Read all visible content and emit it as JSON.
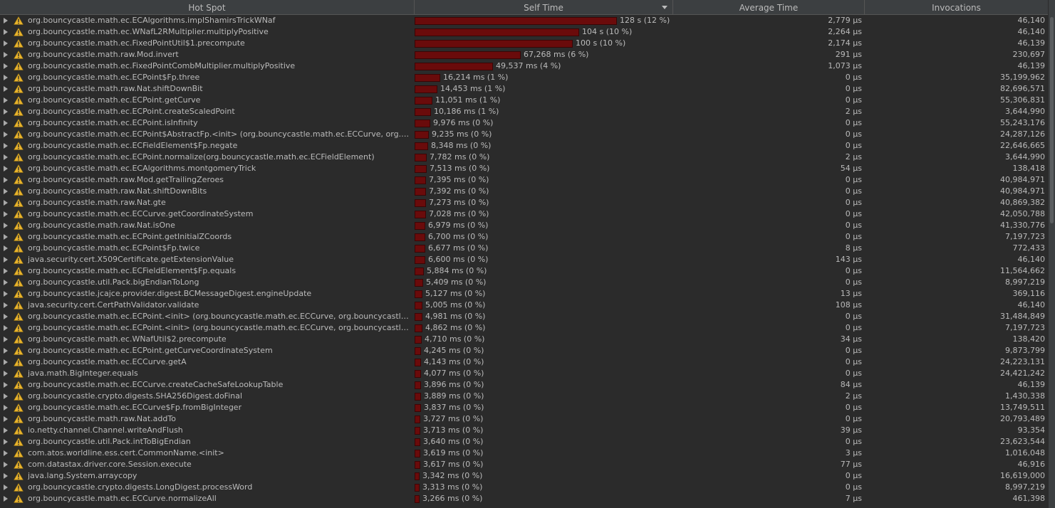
{
  "header": {
    "hot_spot": "Hot Spot",
    "self_time": "Self Time",
    "average_time": "Average Time",
    "invocations": "Invocations"
  },
  "colors": {
    "bar": "#6a0b0b",
    "warning": "#e8b32c"
  },
  "rows": [
    {
      "method": "org.bouncycastle.math.ec.ECAlgorithms.implShamirsTrickWNaf",
      "self": "128 s (12 %)",
      "share": 1.0,
      "avg": "2,779 µs",
      "inv": "46,140"
    },
    {
      "method": "org.bouncycastle.math.ec.WNafL2RMultiplier.multiplyPositive",
      "self": "104 s (10 %)",
      "share": 0.8125,
      "avg": "2,264 µs",
      "inv": "46,140"
    },
    {
      "method": "org.bouncycastle.math.ec.FixedPointUtil$1.precompute",
      "self": "100 s (10 %)",
      "share": 0.78125,
      "avg": "2,174 µs",
      "inv": "46,139"
    },
    {
      "method": "org.bouncycastle.math.raw.Mod.invert",
      "self": "67,268 ms (6 %)",
      "share": 0.5255,
      "avg": "291 µs",
      "inv": "230,697"
    },
    {
      "method": "org.bouncycastle.math.ec.FixedPointCombMultiplier.multiplyPositive",
      "self": "49,537 ms (4 %)",
      "share": 0.387,
      "avg": "1,073 µs",
      "inv": "46,139"
    },
    {
      "method": "org.bouncycastle.math.ec.ECPoint$Fp.three",
      "self": "16,214 ms (1 %)",
      "share": 0.1267,
      "avg": "0 µs",
      "inv": "35,199,962"
    },
    {
      "method": "org.bouncycastle.math.raw.Nat.shiftDownBit",
      "self": "14,453 ms (1 %)",
      "share": 0.1129,
      "avg": "0 µs",
      "inv": "82,696,571"
    },
    {
      "method": "org.bouncycastle.math.ec.ECPoint.getCurve",
      "self": "11,051 ms (1 %)",
      "share": 0.0863,
      "avg": "0 µs",
      "inv": "55,306,831"
    },
    {
      "method": "org.bouncycastle.math.ec.ECPoint.createScaledPoint",
      "self": "10,186 ms (1 %)",
      "share": 0.0796,
      "avg": "2 µs",
      "inv": "3,644,990"
    },
    {
      "method": "org.bouncycastle.math.ec.ECPoint.isInfinity",
      "self": "9,976 ms (0 %)",
      "share": 0.0779,
      "avg": "0 µs",
      "inv": "55,243,176"
    },
    {
      "method": "org.bouncycastle.math.ec.ECPoint$AbstractFp.<init> (org.bouncycastle.math.ec.ECCurve, org.bouncycastle.math.ec.ECFieldElement)",
      "self": "9,235 ms (0 %)",
      "share": 0.0721,
      "avg": "0 µs",
      "inv": "24,287,126"
    },
    {
      "method": "org.bouncycastle.math.ec.ECFieldElement$Fp.negate",
      "self": "8,348 ms (0 %)",
      "share": 0.0652,
      "avg": "0 µs",
      "inv": "22,646,665"
    },
    {
      "method": "org.bouncycastle.math.ec.ECPoint.normalize(org.bouncycastle.math.ec.ECFieldElement)",
      "self": "7,782 ms (0 %)",
      "share": 0.0608,
      "avg": "2 µs",
      "inv": "3,644,990"
    },
    {
      "method": "org.bouncycastle.math.ec.ECAlgorithms.montgomeryTrick",
      "self": "7,513 ms (0 %)",
      "share": 0.0587,
      "avg": "54 µs",
      "inv": "138,418"
    },
    {
      "method": "org.bouncycastle.math.raw.Mod.getTrailingZeroes",
      "self": "7,395 ms (0 %)",
      "share": 0.0578,
      "avg": "0 µs",
      "inv": "40,984,971"
    },
    {
      "method": "org.bouncycastle.math.raw.Nat.shiftDownBits",
      "self": "7,392 ms (0 %)",
      "share": 0.0578,
      "avg": "0 µs",
      "inv": "40,984,971"
    },
    {
      "method": "org.bouncycastle.math.raw.Nat.gte",
      "self": "7,273 ms (0 %)",
      "share": 0.0568,
      "avg": "0 µs",
      "inv": "40,869,382"
    },
    {
      "method": "org.bouncycastle.math.ec.ECCurve.getCoordinateSystem",
      "self": "7,028 ms (0 %)",
      "share": 0.0549,
      "avg": "0 µs",
      "inv": "42,050,788"
    },
    {
      "method": "org.bouncycastle.math.raw.Nat.isOne",
      "self": "6,979 ms (0 %)",
      "share": 0.0545,
      "avg": "0 µs",
      "inv": "41,330,776"
    },
    {
      "method": "org.bouncycastle.math.ec.ECPoint.getInitialZCoords",
      "self": "6,700 ms (0 %)",
      "share": 0.0523,
      "avg": "0 µs",
      "inv": "7,197,723"
    },
    {
      "method": "org.bouncycastle.math.ec.ECPoint$Fp.twice",
      "self": "6,677 ms (0 %)",
      "share": 0.0522,
      "avg": "8 µs",
      "inv": "772,433"
    },
    {
      "method": "java.security.cert.X509Certificate.getExtensionValue",
      "self": "6,600 ms (0 %)",
      "share": 0.0516,
      "avg": "143 µs",
      "inv": "46,140"
    },
    {
      "method": "org.bouncycastle.math.ec.ECFieldElement$Fp.equals",
      "self": "5,884 ms (0 %)",
      "share": 0.046,
      "avg": "0 µs",
      "inv": "11,564,662"
    },
    {
      "method": "org.bouncycastle.util.Pack.bigEndianToLong",
      "self": "5,409 ms (0 %)",
      "share": 0.0423,
      "avg": "0 µs",
      "inv": "8,997,219"
    },
    {
      "method": "org.bouncycastle.jcajce.provider.digest.BCMessageDigest.engineUpdate",
      "self": "5,127 ms (0 %)",
      "share": 0.0401,
      "avg": "13 µs",
      "inv": "369,116"
    },
    {
      "method": "java.security.cert.CertPathValidator.validate",
      "self": "5,005 ms (0 %)",
      "share": 0.0391,
      "avg": "108 µs",
      "inv": "46,140"
    },
    {
      "method": "org.bouncycastle.math.ec.ECPoint.<init> (org.bouncycastle.math.ec.ECCurve, org.bouncycastle.math.ec.ECFieldElement)",
      "self": "4,981 ms (0 %)",
      "share": 0.0389,
      "avg": "0 µs",
      "inv": "31,484,849"
    },
    {
      "method": "org.bouncycastle.math.ec.ECPoint.<init> (org.bouncycastle.math.ec.ECCurve, org.bouncycastle.math.ec.ECFieldElement)",
      "self": "4,862 ms (0 %)",
      "share": 0.038,
      "avg": "0 µs",
      "inv": "7,197,723"
    },
    {
      "method": "org.bouncycastle.math.ec.WNafUtil$2.precompute",
      "self": "4,710 ms (0 %)",
      "share": 0.0368,
      "avg": "34 µs",
      "inv": "138,420"
    },
    {
      "method": "org.bouncycastle.math.ec.ECPoint.getCurveCoordinateSystem",
      "self": "4,245 ms (0 %)",
      "share": 0.0332,
      "avg": "0 µs",
      "inv": "9,873,799"
    },
    {
      "method": "org.bouncycastle.math.ec.ECCurve.getA",
      "self": "4,143 ms (0 %)",
      "share": 0.0324,
      "avg": "0 µs",
      "inv": "24,223,131"
    },
    {
      "method": "java.math.BigInteger.equals",
      "self": "4,077 ms (0 %)",
      "share": 0.0319,
      "avg": "0 µs",
      "inv": "24,421,242"
    },
    {
      "method": "org.bouncycastle.math.ec.ECCurve.createCacheSafeLookupTable",
      "self": "3,896 ms (0 %)",
      "share": 0.0304,
      "avg": "84 µs",
      "inv": "46,139"
    },
    {
      "method": "org.bouncycastle.crypto.digests.SHA256Digest.doFinal",
      "self": "3,889 ms (0 %)",
      "share": 0.0304,
      "avg": "2 µs",
      "inv": "1,430,338"
    },
    {
      "method": "org.bouncycastle.math.ec.ECCurve$Fp.fromBigInteger",
      "self": "3,837 ms (0 %)",
      "share": 0.03,
      "avg": "0 µs",
      "inv": "13,749,511"
    },
    {
      "method": "org.bouncycastle.math.raw.Nat.addTo",
      "self": "3,727 ms (0 %)",
      "share": 0.0291,
      "avg": "0 µs",
      "inv": "20,793,489"
    },
    {
      "method": "io.netty.channel.Channel.writeAndFlush",
      "self": "3,713 ms (0 %)",
      "share": 0.029,
      "avg": "39 µs",
      "inv": "93,354"
    },
    {
      "method": "org.bouncycastle.util.Pack.intToBigEndian",
      "self": "3,640 ms (0 %)",
      "share": 0.0284,
      "avg": "0 µs",
      "inv": "23,623,544"
    },
    {
      "method": "com.atos.worldline.ess.cert.CommonName.<init>",
      "self": "3,619 ms (0 %)",
      "share": 0.0283,
      "avg": "3 µs",
      "inv": "1,016,048"
    },
    {
      "method": "com.datastax.driver.core.Session.execute",
      "self": "3,617 ms (0 %)",
      "share": 0.0283,
      "avg": "77 µs",
      "inv": "46,916"
    },
    {
      "method": "java.lang.System.arraycopy",
      "self": "3,342 ms (0 %)",
      "share": 0.0261,
      "avg": "0 µs",
      "inv": "16,619,000"
    },
    {
      "method": "org.bouncycastle.crypto.digests.LongDigest.processWord",
      "self": "3,313 ms (0 %)",
      "share": 0.0259,
      "avg": "0 µs",
      "inv": "8,997,219"
    },
    {
      "method": "org.bouncycastle.math.ec.ECCurve.normalizeAll",
      "self": "3,266 ms (0 %)",
      "share": 0.0255,
      "avg": "7 µs",
      "inv": "461,398"
    }
  ]
}
